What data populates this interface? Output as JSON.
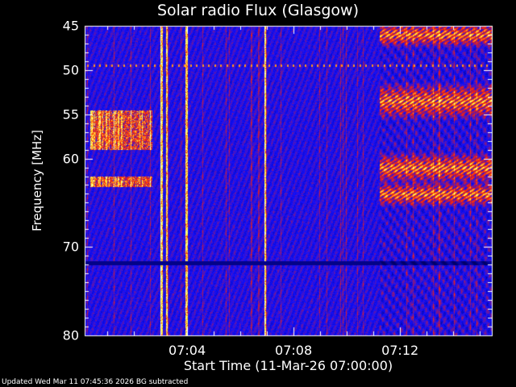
{
  "chart_data": {
    "type": "heatmap",
    "title": "Solar radio Flux (Glasgow)",
    "xlabel": "Start Time (11-Mar-26 07:00:00)",
    "ylabel": "Frequency [MHz]",
    "x_ticks": [
      "07:04",
      "07:08",
      "07:12"
    ],
    "y_ticks": [
      "45",
      "50",
      "55",
      "60",
      "70",
      "80"
    ],
    "xlim": [
      "07:00:09",
      "07:15:27"
    ],
    "ylim": [
      80,
      45
    ],
    "colormap": [
      "#00006a",
      "#1010ff",
      "#ff2000",
      "#ffff40",
      "#ffffff"
    ],
    "features": [
      {
        "kind": "interference-line",
        "freq_mhz": 49.5,
        "time": [
          "07:00:09",
          "07:15:27"
        ]
      },
      {
        "kind": "burst",
        "time": [
          "07:00:20",
          "07:02:40"
        ],
        "freq_mhz": [
          54.5,
          59
        ]
      },
      {
        "kind": "burst",
        "time": [
          "07:00:20",
          "07:02:40"
        ],
        "freq_mhz": [
          62,
          63.2
        ]
      },
      {
        "kind": "vertical-spike",
        "time": "07:03:02"
      },
      {
        "kind": "vertical-spike",
        "time": "07:03:13"
      },
      {
        "kind": "vertical-spike",
        "time": "07:03:58"
      },
      {
        "kind": "vertical-spike",
        "time": "07:06:55"
      },
      {
        "kind": "band",
        "time": [
          "07:11:13",
          "07:15:27"
        ],
        "freq_mhz": [
          45,
          47
        ]
      },
      {
        "kind": "band",
        "time": [
          "07:11:13",
          "07:15:27"
        ],
        "freq_mhz": [
          52,
          55
        ]
      },
      {
        "kind": "band",
        "time": [
          "07:11:13",
          "07:15:27"
        ],
        "freq_mhz": [
          59.8,
          62.3
        ]
      },
      {
        "kind": "band",
        "time": [
          "07:11:13",
          "07:15:27"
        ],
        "freq_mhz": [
          63,
          65
        ]
      },
      {
        "kind": "dark-gap",
        "freq_mhz": 71.8,
        "time": [
          "07:00:09",
          "07:15:27"
        ]
      }
    ]
  },
  "footer": "Updated Wed Mar 11 07:45:36 2026    BG subtracted"
}
